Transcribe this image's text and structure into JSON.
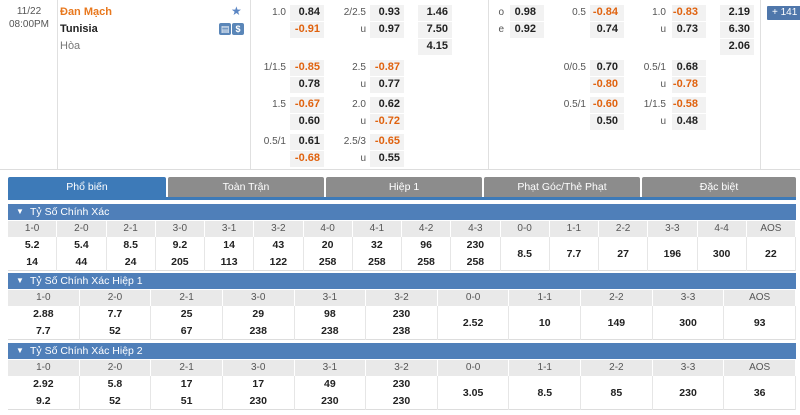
{
  "match": {
    "date": "11/22",
    "time": "08:00PM",
    "home": "Đan Mạch",
    "away": "Tunisia",
    "draw": "Hòa",
    "more": "+ 141",
    "handicap": [
      {
        "line": "1.0",
        "home": "0.84",
        "away": "-0.91"
      },
      {
        "line": "1/1.5",
        "home": "-0.85",
        "away": "0.78"
      },
      {
        "line": "1.5",
        "home": "-0.67",
        "away": "0.60"
      },
      {
        "line": "0.5/1",
        "home": "0.61",
        "away": "-0.68"
      }
    ],
    "totals": [
      {
        "line": "2/2.5",
        "over": "0.93",
        "u": "u",
        "under": "0.97"
      },
      {
        "line": "2.5",
        "over": "-0.87",
        "u": "u",
        "under": "0.77"
      },
      {
        "line": "2.0",
        "over": "0.62",
        "u": "u",
        "under": "-0.72"
      },
      {
        "line": "2.5/3",
        "over": "-0.65",
        "u": "u",
        "under": "0.55"
      }
    ],
    "x12": [
      "1.46",
      "7.50",
      "4.15"
    ],
    "oe": {
      "o": "o",
      "o_val": "0.98",
      "e": "e",
      "e_val": "0.92"
    },
    "h1_handicap": [
      {
        "line": "0.5",
        "home": "-0.84",
        "away": "0.74"
      },
      {
        "line": "0/0.5",
        "home": "0.70",
        "away": "-0.80"
      },
      {
        "line": "0.5/1",
        "home": "-0.60",
        "away": "0.50"
      }
    ],
    "h1_totals": [
      {
        "line": "1.0",
        "over": "-0.83",
        "u": "u",
        "under": "0.73"
      },
      {
        "line": "0.5/1",
        "over": "0.68",
        "u": "u",
        "under": "-0.78"
      },
      {
        "line": "1/1.5",
        "over": "-0.58",
        "u": "u",
        "under": "0.48"
      }
    ],
    "h1_x12": [
      "2.19",
      "6.30",
      "2.06"
    ]
  },
  "tabs": [
    "Phổ biến",
    "Toàn Trận",
    "Hiệp 1",
    "Phạt Góc/Thẻ Phạt",
    "Đặc biệt"
  ],
  "sections": [
    {
      "title": "Tỷ Số Chính Xác",
      "headers": [
        "1-0",
        "2-0",
        "2-1",
        "3-0",
        "3-1",
        "3-2",
        "4-0",
        "4-1",
        "4-2",
        "4-3",
        "0-0",
        "1-1",
        "2-2",
        "3-3",
        "4-4",
        "AOS"
      ],
      "top": [
        "5.2",
        "5.4",
        "8.5",
        "9.2",
        "14",
        "43",
        "20",
        "32",
        "96",
        "230",
        "",
        "",
        "",
        "",
        "",
        ""
      ],
      "bottom": [
        "14",
        "44",
        "24",
        "205",
        "113",
        "122",
        "258",
        "258",
        "258",
        "258",
        "",
        "",
        "",
        "",
        "",
        ""
      ],
      "middle": [
        "",
        "",
        "",
        "",
        "",
        "",
        "",
        "",
        "",
        "",
        "8.5",
        "7.7",
        "27",
        "196",
        "300",
        "22"
      ]
    },
    {
      "title": "Tỷ Số Chính Xác Hiệp 1",
      "headers": [
        "1-0",
        "2-0",
        "2-1",
        "3-0",
        "3-1",
        "3-2",
        "0-0",
        "1-1",
        "2-2",
        "3-3",
        "AOS"
      ],
      "top": [
        "2.88",
        "7.7",
        "25",
        "29",
        "98",
        "230",
        "",
        "",
        "",
        "",
        ""
      ],
      "bottom": [
        "7.7",
        "52",
        "67",
        "238",
        "238",
        "238",
        "",
        "",
        "",
        "",
        ""
      ],
      "middle": [
        "",
        "",
        "",
        "",
        "",
        "",
        "2.52",
        "10",
        "149",
        "300",
        "93"
      ]
    },
    {
      "title": "Tỷ Số Chính Xác Hiệp 2",
      "headers": [
        "1-0",
        "2-0",
        "2-1",
        "3-0",
        "3-1",
        "3-2",
        "0-0",
        "1-1",
        "2-2",
        "3-3",
        "AOS"
      ],
      "top": [
        "2.92",
        "5.8",
        "17",
        "17",
        "49",
        "230",
        "",
        "",
        "",
        "",
        ""
      ],
      "bottom": [
        "9.2",
        "52",
        "51",
        "230",
        "230",
        "230",
        "",
        "",
        "",
        "",
        ""
      ],
      "middle": [
        "",
        "",
        "",
        "",
        "",
        "",
        "3.05",
        "8.5",
        "85",
        "230",
        "36"
      ]
    }
  ],
  "colors": {
    "accent": "#3d7ab8",
    "negative": "#e0620e",
    "home_team": "#e8781e"
  }
}
